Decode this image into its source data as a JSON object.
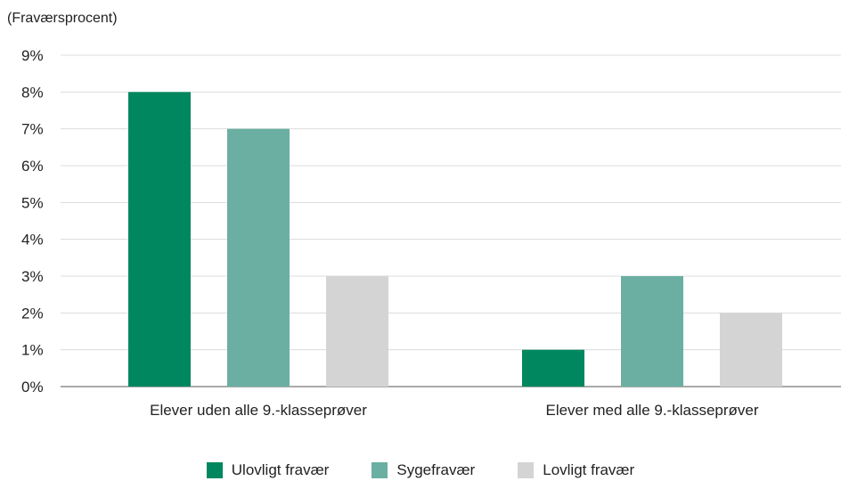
{
  "chart_data": {
    "type": "bar",
    "ylabel": "(Fraværsprocent)",
    "ylim": [
      0,
      9
    ],
    "yticks": [
      "0%",
      "1%",
      "2%",
      "3%",
      "4%",
      "5%",
      "6%",
      "7%",
      "8%",
      "9%"
    ],
    "categories": [
      "Elever uden alle 9.-klasseprøver",
      "Elever med alle 9.-klasseprøver"
    ],
    "series": [
      {
        "name": "Ulovligt fravær",
        "values": [
          8,
          1
        ],
        "color": "#00875f"
      },
      {
        "name": "Sygefravær",
        "values": [
          7,
          3
        ],
        "color": "#6aafa2"
      },
      {
        "name": "Lovligt fravær",
        "values": [
          3,
          2
        ],
        "color": "#d4d4d4"
      }
    ],
    "grid": true,
    "legend_position": "bottom-center"
  }
}
